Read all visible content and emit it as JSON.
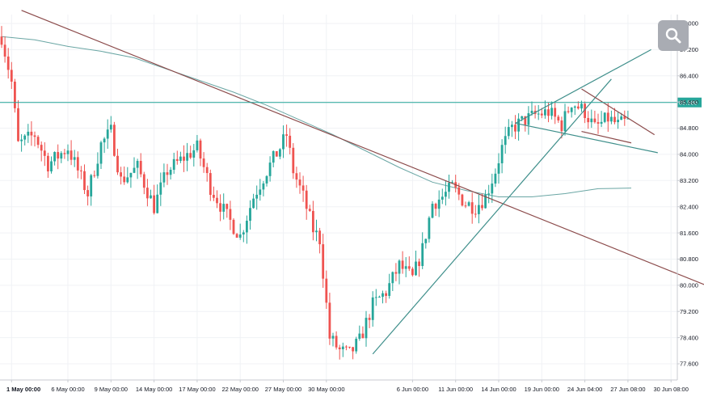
{
  "chart_data": {
    "type": "candlestick",
    "title": "",
    "xlabel": "",
    "ylabel": "",
    "ylim": [
      77.2,
      88.2
    ],
    "y_ticks": [
      77.6,
      78.4,
      79.2,
      80.0,
      80.8,
      81.6,
      82.4,
      83.2,
      84.0,
      84.8,
      85.6,
      86.4,
      87.2,
      88.0
    ],
    "y_tick_labels": [
      "77.600",
      "78.400",
      "79.200",
      "80.000",
      "80.800",
      "81.600",
      "82.400",
      "83.200",
      "84.000",
      "84.800",
      "85.600",
      "86.400",
      "87.200",
      "88.000"
    ],
    "x_tick_labels": [
      "1 May 00:00",
      "6 May 00:00",
      "9 May 00:00",
      "14 May 00:00",
      "17 May 00:00",
      "22 May 00:00",
      "27 May 00:00",
      "30 May 00:00",
      "6 Jun 00:00",
      "11 Jun 00:00",
      "14 Jun 00:00",
      "19 Jun 00:00",
      "24 Jun 04:00",
      "27 Jun 08:00",
      "30 Jun 08:00"
    ],
    "x_tick_index": [
      3,
      20,
      33,
      46,
      59,
      72,
      85,
      98,
      124,
      137,
      150,
      163,
      176,
      189,
      202
    ],
    "current_price": 85.586,
    "current_price_label": "85.586",
    "current_price_color": "#26a69a",
    "up_color": "#26a69a",
    "down_color": "#ef5350",
    "close_path": [
      [
        0,
        87.6
      ],
      [
        3,
        86.2
      ],
      [
        5,
        84.3
      ],
      [
        10,
        84.6
      ],
      [
        14,
        83.7
      ],
      [
        20,
        84.2
      ],
      [
        26,
        82.8
      ],
      [
        30,
        84.3
      ],
      [
        33,
        84.7
      ],
      [
        36,
        83.2
      ],
      [
        41,
        83.6
      ],
      [
        46,
        82.4
      ],
      [
        50,
        83.5
      ],
      [
        55,
        83.9
      ],
      [
        59,
        84.2
      ],
      [
        63,
        83.0
      ],
      [
        68,
        82.1
      ],
      [
        72,
        81.5
      ],
      [
        76,
        82.7
      ],
      [
        80,
        83.5
      ],
      [
        84,
        84.2
      ],
      [
        86,
        84.6
      ],
      [
        88,
        83.5
      ],
      [
        91,
        82.7
      ],
      [
        94,
        81.7
      ],
      [
        96,
        81.4
      ],
      [
        99,
        78.4
      ],
      [
        102,
        78.0
      ],
      [
        105,
        77.9
      ],
      [
        108,
        78.3
      ],
      [
        112,
        79.4
      ],
      [
        116,
        79.8
      ],
      [
        120,
        80.6
      ],
      [
        124,
        80.2
      ],
      [
        127,
        81.1
      ],
      [
        130,
        82.5
      ],
      [
        133,
        82.7
      ],
      [
        136,
        83.0
      ],
      [
        140,
        82.5
      ],
      [
        143,
        82.4
      ],
      [
        146,
        82.7
      ],
      [
        149,
        83.5
      ],
      [
        151,
        84.2
      ],
      [
        154,
        84.8
      ],
      [
        157,
        85.0
      ],
      [
        161,
        85.2
      ],
      [
        165,
        85.3
      ],
      [
        169,
        84.9
      ],
      [
        172,
        85.6
      ],
      [
        176,
        85.3
      ],
      [
        179,
        84.8
      ],
      [
        183,
        85.1
      ],
      [
        186,
        84.9
      ],
      [
        189,
        85.0
      ]
    ],
    "trendlines": [
      {
        "kind": "descending-resistance",
        "color": "#8b4a4a",
        "points": [
          [
            6,
            88.4
          ],
          [
            215,
            79.9
          ]
        ]
      },
      {
        "kind": "ascending-support",
        "color": "#3f8f8b",
        "points": [
          [
            112,
            77.9
          ],
          [
            184,
            86.3
          ]
        ]
      },
      {
        "kind": "wedge-upper",
        "color": "#3f8f8b",
        "points": [
          [
            155,
            84.95
          ],
          [
            196,
            87.2
          ]
        ]
      },
      {
        "kind": "wedge-lower",
        "color": "#3f8f8b",
        "points": [
          [
            155,
            84.95
          ],
          [
            198,
            84.05
          ]
        ]
      },
      {
        "kind": "pennant-upper",
        "color": "#8b4a4a",
        "points": [
          [
            175,
            86.0
          ],
          [
            197,
            84.6
          ]
        ]
      },
      {
        "kind": "pennant-lower",
        "color": "#8b4a4a",
        "points": [
          [
            175,
            84.7
          ],
          [
            190,
            84.35
          ]
        ]
      }
    ],
    "moving_average": {
      "color": "#6aa6a4",
      "points": [
        [
          0,
          87.6
        ],
        [
          10,
          87.5
        ],
        [
          20,
          87.3
        ],
        [
          30,
          87.15
        ],
        [
          40,
          86.95
        ],
        [
          50,
          86.6
        ],
        [
          60,
          86.25
        ],
        [
          70,
          85.9
        ],
        [
          80,
          85.5
        ],
        [
          90,
          85.05
        ],
        [
          100,
          84.6
        ],
        [
          110,
          84.1
        ],
        [
          120,
          83.6
        ],
        [
          130,
          83.15
        ],
        [
          140,
          82.9
        ],
        [
          150,
          82.7
        ],
        [
          160,
          82.7
        ],
        [
          170,
          82.8
        ],
        [
          180,
          82.95
        ],
        [
          190,
          82.97
        ]
      ]
    },
    "grid": true,
    "legend": "none"
  },
  "search_icon": "search-icon"
}
